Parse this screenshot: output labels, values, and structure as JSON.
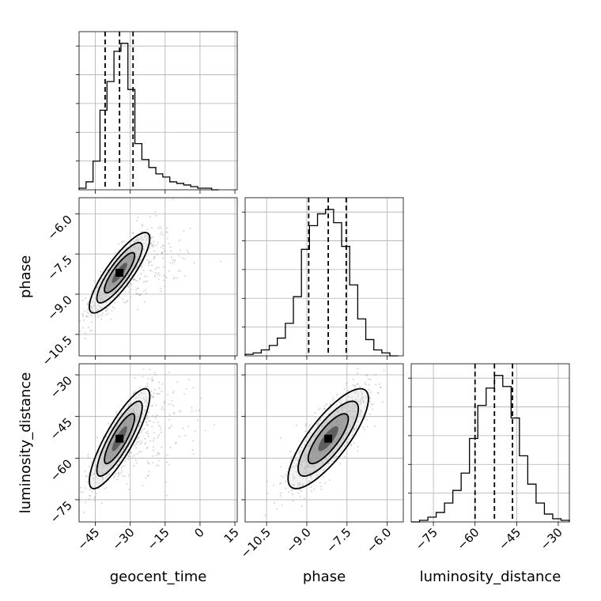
{
  "chart_data": {
    "type": "corner",
    "parameters": [
      "geocent_time",
      "phase",
      "luminosity_distance"
    ],
    "xlabels": [
      "geocent_time",
      "phase",
      "luminosity_distance"
    ],
    "ylabels": [
      "",
      "phase",
      "luminosity_distance"
    ],
    "ranges": {
      "geocent_time": [
        -52,
        16
      ],
      "phase": [
        -11.3,
        -5.4
      ],
      "luminosity_distance": [
        -83,
        -26
      ]
    },
    "ticks": {
      "geocent_time": [
        -45,
        -30,
        -15,
        0,
        15
      ],
      "phase": [
        -10.5,
        -9.0,
        -7.5,
        -6.0
      ],
      "luminosity_distance": [
        -75,
        -60,
        -45,
        -30
      ]
    },
    "tick_labels": {
      "geocent_time": [
        "−45",
        "−30",
        "−15",
        "0",
        "15"
      ],
      "phase": [
        "−10.5",
        "−9.0",
        "−7.5",
        "−6.0"
      ],
      "luminosity_distance": [
        "−75",
        "−60",
        "−45",
        "−30"
      ]
    },
    "grid": true,
    "histograms": [
      {
        "parameter": "geocent_time",
        "bin_edges": [
          -52,
          -49,
          -46,
          -43,
          -40,
          -37,
          -34,
          -31,
          -28,
          -25,
          -22,
          -19,
          -16,
          -13,
          -10,
          -7,
          -4,
          -1,
          2,
          5,
          8
        ],
        "counts": [
          1,
          5,
          18,
          50,
          68,
          87,
          92,
          63,
          29,
          19,
          14,
          10,
          8,
          5,
          4,
          3,
          2,
          1,
          1,
          0
        ],
        "quantiles": [
          -40.8,
          -34.6,
          -28.8
        ]
      },
      {
        "parameter": "phase",
        "bin_edges": [
          -11.3,
          -11.0,
          -10.7,
          -10.4,
          -10.1,
          -9.8,
          -9.5,
          -9.2,
          -8.9,
          -8.6,
          -8.3,
          -8.0,
          -7.7,
          -7.4,
          -7.1,
          -6.8,
          -6.5,
          -6.2,
          -5.9,
          -5.6
        ],
        "counts": [
          1,
          2,
          4,
          7,
          12,
          22,
          40,
          72,
          88,
          96,
          99,
          90,
          74,
          48,
          25,
          11,
          4,
          2,
          0
        ],
        "quantiles": [
          -8.93,
          -8.2,
          -7.53
        ]
      },
      {
        "parameter": "luminosity_distance",
        "bin_edges": [
          -83,
          -80,
          -77,
          -74,
          -71,
          -68,
          -65,
          -62,
          -59,
          -56,
          -53,
          -50,
          -47,
          -44,
          -41,
          -38,
          -35,
          -32,
          -29,
          -26
        ],
        "counts": [
          0,
          1,
          3,
          6,
          12,
          20,
          31,
          53,
          74,
          85,
          93,
          86,
          66,
          42,
          24,
          12,
          5,
          2,
          1
        ],
        "quantiles": [
          -60.0,
          -53.0,
          -46.5
        ]
      }
    ],
    "correlations": [
      {
        "x": "geocent_time",
        "y": "phase",
        "center": [
          -34.6,
          -8.2
        ],
        "sd": [
          6.5,
          0.75
        ],
        "rho": 0.85,
        "sample_color": "#9e9e9e"
      },
      {
        "x": "geocent_time",
        "y": "luminosity_distance",
        "center": [
          -34.6,
          -53.0
        ],
        "sd": [
          6.5,
          9.0
        ],
        "rho": 0.85,
        "sample_color": "#9e9e9e"
      },
      {
        "x": "phase",
        "y": "luminosity_distance",
        "center": [
          -8.2,
          -53.0
        ],
        "sd": [
          0.75,
          9.0
        ],
        "rho": 0.8,
        "sample_color": "#9e9e9e"
      }
    ],
    "contour_levels": [
      0.118,
      0.393,
      0.675,
      0.865
    ],
    "line_color": "#000000",
    "grid_color": "#b0b0b0"
  }
}
